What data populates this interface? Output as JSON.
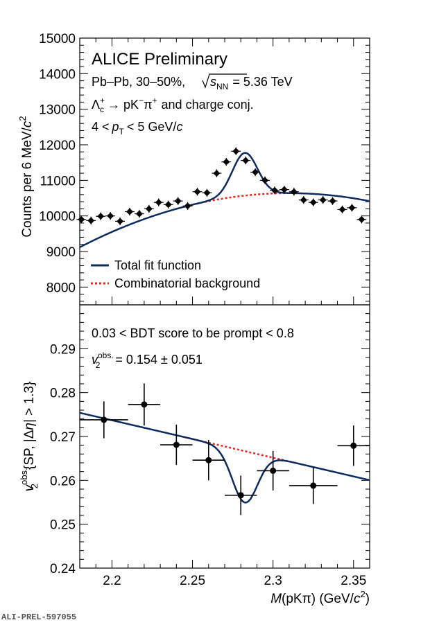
{
  "chart_data": [
    {
      "type": "scatter",
      "panel": "top",
      "ylabel_parts": {
        "main": "Counts per 6 MeV/",
        "c": "c",
        "sup": "2"
      },
      "ylim": [
        7500,
        15000
      ],
      "yticks": [
        8000,
        9000,
        10000,
        11000,
        12000,
        13000,
        14000,
        15000
      ],
      "xlim": [
        2.18,
        2.36
      ],
      "annotations": {
        "experiment": "ALICE Preliminary",
        "system_pre": "Pb–Pb, 30–50%,",
        "system_sqrt": "s",
        "system_sub": "NN",
        "system_post": "= 5.36 TeV",
        "decay_lambda": "Λ",
        "decay_c": "c",
        "decay_plus": "+",
        "decay_arrow": "→ pK",
        "decay_minus": "−",
        "decay_pi": "π",
        "decay_pi_plus": "+",
        "decay_post": "and charge conj.",
        "pt_pre": "4 <",
        "pt_p": "p",
        "pt_sub": "T",
        "pt_post": "< 5 GeV/",
        "pt_c": "c"
      },
      "legend": {
        "placement": "bottom-left",
        "entries": [
          {
            "label": "Total fit function",
            "color": "#0d2b5e",
            "style": "solid"
          },
          {
            "label": "Combinatorial background",
            "color": "#e8221c",
            "style": "dotted"
          }
        ]
      },
      "series": [
        {
          "name": "Data",
          "marker": "diamond",
          "color": "#000000",
          "x": [
            2.181,
            2.187,
            2.193,
            2.199,
            2.205,
            2.211,
            2.217,
            2.223,
            2.229,
            2.235,
            2.241,
            2.247,
            2.253,
            2.259,
            2.265,
            2.271,
            2.277,
            2.283,
            2.289,
            2.295,
            2.301,
            2.307,
            2.313,
            2.319,
            2.325,
            2.331,
            2.337,
            2.343,
            2.349,
            2.355
          ],
          "y": [
            9900,
            9870,
            9990,
            10000,
            9850,
            10120,
            10060,
            10200,
            10380,
            10320,
            10420,
            10280,
            10680,
            10650,
            11200,
            11520,
            11820,
            11560,
            11230,
            11000,
            10720,
            10740,
            10680,
            10450,
            10380,
            10450,
            10420,
            10180,
            10230,
            9900
          ],
          "yerr": 110,
          "xerr": 0.003
        }
      ],
      "fit_total": {
        "bkg": {
          "a": 10640,
          "b": 2.31,
          "c": -90000
        },
        "signal": {
          "amp": 1200,
          "mean": 2.2825,
          "sigma": 0.0078
        }
      },
      "fit_background": {
        "a": 10640,
        "b": 2.31,
        "c": -90000
      }
    },
    {
      "type": "scatter",
      "panel": "bottom",
      "ylabel_parts": {
        "v": "v",
        "sub": "2",
        "sup": "obs.",
        "rest": "{SP, |Δ",
        "eta": "η",
        "rest2": "| > 1.3}"
      },
      "xlabel_parts": {
        "M": "M",
        "open": "(pKπ) (GeV/",
        "c": "c",
        "sup": "2",
        "close": ")"
      },
      "ylim": [
        0.24,
        0.3
      ],
      "yticks": [
        0.24,
        0.25,
        0.26,
        0.27,
        0.28,
        0.29
      ],
      "ytick_labels": [
        "0.24",
        "0.25",
        "0.26",
        "0.27",
        "0.28",
        "0.29"
      ],
      "xlim": [
        2.18,
        2.36
      ],
      "xticks": [
        2.2,
        2.25,
        2.3,
        2.35
      ],
      "xtick_labels": [
        "2.2",
        "2.25",
        "2.3",
        "2.35"
      ],
      "annotations": {
        "bdt": "0.03 < BDT score to be prompt < 0.8",
        "v2_v": "v",
        "v2_sub": "2",
        "v2_sup": "obs.",
        "v2_value": "= 0.154 ± 0.051"
      },
      "series": [
        {
          "name": "Data",
          "marker": "circle",
          "color": "#000000",
          "x": [
            2.195,
            2.22,
            2.24,
            2.26,
            2.28,
            2.3,
            2.325,
            2.35
          ],
          "y": [
            0.2738,
            0.2773,
            0.2681,
            0.2646,
            0.2566,
            0.2622,
            0.2588,
            0.2679
          ],
          "xerr": [
            0.015,
            0.01,
            0.01,
            0.01,
            0.01,
            0.01,
            0.015,
            0.01
          ],
          "yerr": [
            0.0042,
            0.0048,
            0.0046,
            0.0046,
            0.0045,
            0.0045,
            0.0042,
            0.0046
          ]
        }
      ],
      "fit_total_bkg": {
        "p0": 0.2754,
        "p1": -0.0853,
        "x0": 2.18
      },
      "fit_total_dip": {
        "depth": 0.0117,
        "mean": 2.2825,
        "sigma": 0.0078
      }
    }
  ],
  "footer": {
    "tag": "ALI-PREL-597055"
  },
  "colors": {
    "fit_total": "#0d2b5e",
    "background": "#e8221c",
    "markers": "#000000"
  }
}
